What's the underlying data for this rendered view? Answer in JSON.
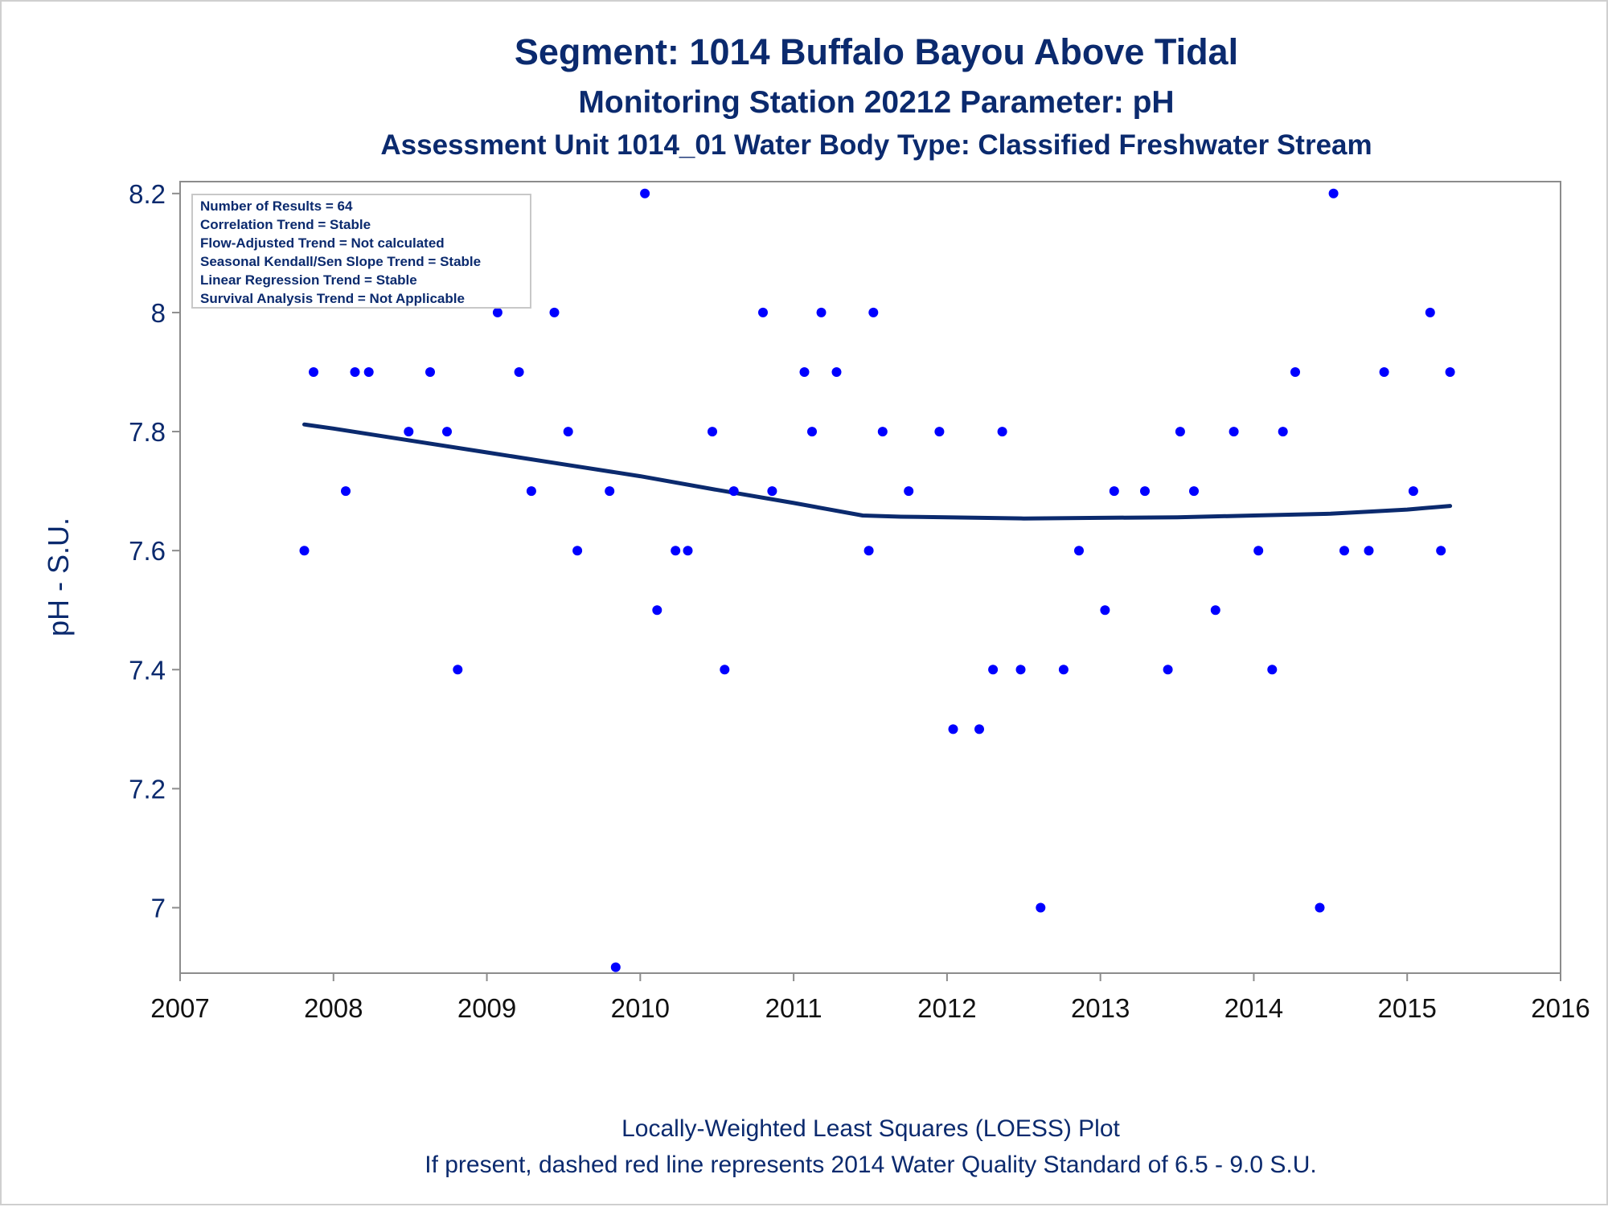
{
  "chart_data": {
    "type": "scatter",
    "title": "Segment: 1014  Buffalo Bayou Above Tidal",
    "subtitle": "Monitoring Station 20212 Parameter: pH",
    "subtitle2": "Assessment Unit 1014_01   Water Body Type: Classified Freshwater Stream",
    "xlabel": "",
    "ylabel": "pH - S.U.",
    "footnote1": "Locally-Weighted Least Squares (LOESS) Plot",
    "footnote2": "If present, dashed red line represents 2014 Water Quality Standard of 6.5 - 9.0 S.U.",
    "xlim": [
      2007,
      2016
    ],
    "ylim": [
      6.89,
      8.22
    ],
    "x_ticks": [
      2007,
      2008,
      2009,
      2010,
      2011,
      2012,
      2013,
      2014,
      2015,
      2016
    ],
    "y_ticks": [
      7,
      7.2,
      7.4,
      7.6,
      7.8,
      8,
      8.2
    ],
    "grid": false,
    "stats_box": [
      "Number of Results = 64",
      "Correlation Trend = Stable",
      "Flow-Adjusted Trend = Not calculated",
      "Seasonal Kendall/Sen Slope Trend = Stable",
      "Linear Regression Trend = Stable",
      "Survival Analysis Trend = Not Applicable"
    ],
    "points": [
      [
        2007.81,
        7.6
      ],
      [
        2007.87,
        7.9
      ],
      [
        2008.08,
        7.7
      ],
      [
        2008.14,
        7.9
      ],
      [
        2008.23,
        7.9
      ],
      [
        2008.49,
        7.8
      ],
      [
        2008.63,
        7.9
      ],
      [
        2008.74,
        7.8
      ],
      [
        2008.81,
        7.4
      ],
      [
        2009.07,
        8.0
      ],
      [
        2009.21,
        7.9
      ],
      [
        2009.29,
        7.7
      ],
      [
        2009.44,
        8.0
      ],
      [
        2009.53,
        7.8
      ],
      [
        2009.59,
        7.6
      ],
      [
        2009.8,
        7.7
      ],
      [
        2009.84,
        6.9
      ],
      [
        2010.03,
        8.2
      ],
      [
        2010.11,
        7.5
      ],
      [
        2010.23,
        7.6
      ],
      [
        2010.31,
        7.6
      ],
      [
        2010.47,
        7.8
      ],
      [
        2010.55,
        7.4
      ],
      [
        2010.61,
        7.7
      ],
      [
        2010.8,
        8.0
      ],
      [
        2010.86,
        7.7
      ],
      [
        2011.07,
        7.9
      ],
      [
        2011.12,
        7.8
      ],
      [
        2011.18,
        8.0
      ],
      [
        2011.28,
        7.9
      ],
      [
        2011.49,
        7.6
      ],
      [
        2011.52,
        8.0
      ],
      [
        2011.58,
        7.8
      ],
      [
        2011.75,
        7.7
      ],
      [
        2011.95,
        7.8
      ],
      [
        2012.04,
        7.3
      ],
      [
        2012.21,
        7.3
      ],
      [
        2012.3,
        7.4
      ],
      [
        2012.36,
        7.8
      ],
      [
        2012.48,
        7.4
      ],
      [
        2012.61,
        7.0
      ],
      [
        2012.76,
        7.4
      ],
      [
        2012.86,
        7.6
      ],
      [
        2013.03,
        7.5
      ],
      [
        2013.09,
        7.7
      ],
      [
        2013.29,
        7.7
      ],
      [
        2013.44,
        7.4
      ],
      [
        2013.52,
        7.8
      ],
      [
        2013.61,
        7.7
      ],
      [
        2013.75,
        7.5
      ],
      [
        2013.87,
        7.8
      ],
      [
        2014.03,
        7.6
      ],
      [
        2014.12,
        7.4
      ],
      [
        2014.19,
        7.8
      ],
      [
        2014.27,
        7.9
      ],
      [
        2014.43,
        7.0
      ],
      [
        2014.52,
        8.2
      ],
      [
        2014.59,
        7.6
      ],
      [
        2014.75,
        7.6
      ],
      [
        2014.85,
        7.9
      ],
      [
        2015.04,
        7.7
      ],
      [
        2015.15,
        8.0
      ],
      [
        2015.22,
        7.6
      ],
      [
        2015.28,
        7.9
      ]
    ],
    "loess": [
      [
        2007.81,
        7.812
      ],
      [
        2008.0,
        7.805
      ],
      [
        2008.5,
        7.785
      ],
      [
        2009.0,
        7.765
      ],
      [
        2009.5,
        7.745
      ],
      [
        2010.0,
        7.725
      ],
      [
        2010.5,
        7.702
      ],
      [
        2011.0,
        7.68
      ],
      [
        2011.45,
        7.659
      ],
      [
        2011.7,
        7.657
      ],
      [
        2012.0,
        7.656
      ],
      [
        2012.5,
        7.654
      ],
      [
        2013.0,
        7.655
      ],
      [
        2013.5,
        7.656
      ],
      [
        2014.0,
        7.659
      ],
      [
        2014.5,
        7.662
      ],
      [
        2015.0,
        7.669
      ],
      [
        2015.28,
        7.675
      ]
    ],
    "colors": {
      "points": "#0000ff",
      "loess_line": "#0b2a6e",
      "text": "#0b2a6e",
      "axis": "#8c8c8c"
    }
  }
}
